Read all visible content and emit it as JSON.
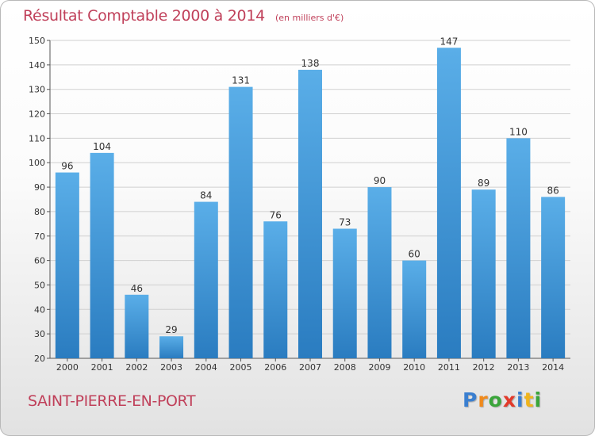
{
  "title": "Résultat Comptable 2000 à 2014",
  "subtitle": "(en milliers d'€)",
  "commune": "SAINT-PIERRE-EN-PORT",
  "logo": {
    "text": "Proxiti",
    "letters": [
      {
        "char": "P",
        "color": "#3a7fd0"
      },
      {
        "char": "r",
        "color": "#f08a1c"
      },
      {
        "char": "o",
        "color": "#3aa53a"
      },
      {
        "char": "x",
        "color": "#e23a2a"
      },
      {
        "char": "i",
        "color": "#3a7fd0"
      },
      {
        "char": "t",
        "color": "#f0b41c"
      },
      {
        "char": "i",
        "color": "#3aa53a"
      }
    ]
  },
  "colors": {
    "bar_light": "#5aaee8",
    "bar_dark": "#2a7cc0",
    "title": "#c0405a",
    "grid": "#d0d0d0"
  },
  "chart_data": {
    "type": "bar",
    "title": "Résultat Comptable 2000 à 2014",
    "subtitle": "(en milliers d'€)",
    "categories": [
      "2000",
      "2001",
      "2002",
      "2003",
      "2004",
      "2005",
      "2006",
      "2007",
      "2008",
      "2009",
      "2010",
      "2011",
      "2012",
      "2013",
      "2014"
    ],
    "values": [
      96,
      104,
      46,
      29,
      84,
      131,
      76,
      138,
      73,
      90,
      60,
      147,
      89,
      110,
      86
    ],
    "ylim": [
      20,
      150
    ],
    "yticks": [
      20,
      30,
      40,
      50,
      60,
      70,
      80,
      90,
      100,
      110,
      120,
      130,
      140,
      150
    ],
    "grid": true,
    "data_labels": true
  }
}
